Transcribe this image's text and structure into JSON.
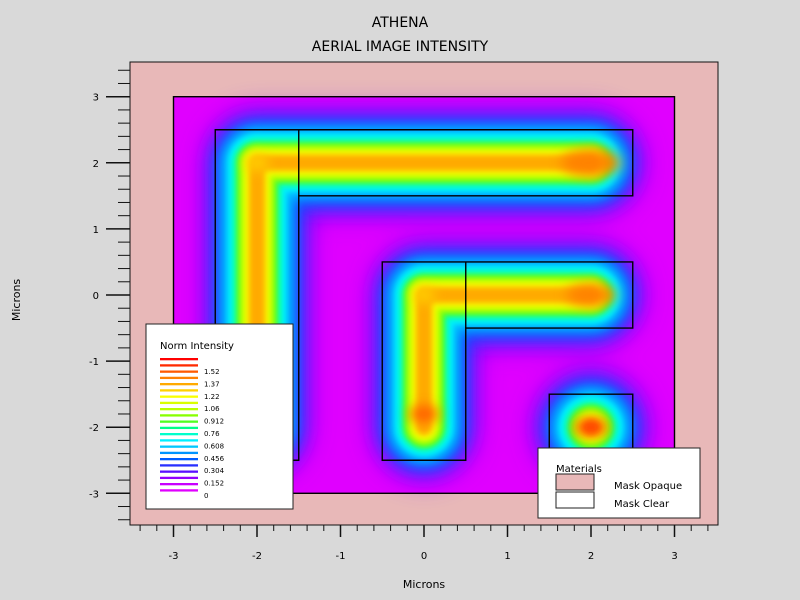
{
  "window": {
    "title": "ATHENA"
  },
  "chart_data": {
    "type": "heatmap",
    "title": "ATHENA",
    "subtitle": "AERIAL IMAGE INTENSITY",
    "xlabel": "Microns",
    "ylabel": "Microns",
    "xlim": [
      -3.5,
      3.5
    ],
    "ylim": [
      -3.5,
      3.5
    ],
    "xticks": [
      -3,
      -2,
      -1,
      0,
      1,
      2,
      3
    ],
    "yticks": [
      -3,
      -2,
      -1,
      0,
      1,
      2,
      3
    ],
    "xtick_labels": [
      "-3",
      "-2",
      "-1",
      "0",
      "1",
      "2",
      "3"
    ],
    "ytick_labels": [
      "-3",
      "-2",
      "-1",
      "0",
      "1",
      "2",
      "3"
    ],
    "colors": {
      "page_background": "#d9d9d9",
      "mask_opaque": "#e8b8b8",
      "zero_intensity": "#e000ff",
      "outline": "#000000"
    },
    "mask_regions": {
      "clear_field": {
        "x": [
          -3,
          3
        ],
        "y": [
          -3,
          3
        ]
      },
      "clear_polygons": [
        {
          "name": "top-l-shape",
          "points": [
            [
              -2.5,
              -2.5
            ],
            [
              -1.5,
              -2.5
            ],
            [
              -1.5,
              1.5
            ],
            [
              2.5,
              1.5
            ],
            [
              2.5,
              2.5
            ],
            [
              -2.5,
              2.5
            ]
          ]
        },
        {
          "name": "middle-l-shape",
          "points": [
            [
              -0.5,
              -2.5
            ],
            [
              0.5,
              -2.5
            ],
            [
              0.5,
              -0.5
            ],
            [
              2.5,
              -0.5
            ],
            [
              2.5,
              0.5
            ],
            [
              -0.5,
              0.5
            ]
          ]
        },
        {
          "name": "small-square",
          "points": [
            [
              1.5,
              -2.5
            ],
            [
              2.5,
              -2.5
            ],
            [
              2.5,
              -1.5
            ],
            [
              1.5,
              -1.5
            ]
          ]
        }
      ],
      "internal_outlines": [
        {
          "points": [
            [
              -1.5,
              2.5
            ],
            [
              -1.5,
              1.5
            ]
          ]
        },
        {
          "points": [
            [
              0.5,
              0.5
            ],
            [
              0.5,
              -0.5
            ]
          ]
        }
      ]
    },
    "intensity_shapes": [
      {
        "name": "top-horizontal-arm",
        "type": "capsule",
        "x1": -2.0,
        "y1": 2.0,
        "x2": 2.0,
        "y2": 2.0,
        "peak": 1.52
      },
      {
        "name": "left-vertical-arm",
        "type": "capsule",
        "x1": -2.0,
        "y1": -2.0,
        "x2": -2.0,
        "y2": 2.0,
        "peak": 1.37
      },
      {
        "name": "middle-horizontal-arm",
        "type": "capsule",
        "x1": 0.0,
        "y1": 0.0,
        "x2": 2.0,
        "y2": 0.0,
        "peak": 1.52
      },
      {
        "name": "middle-vertical-arm",
        "type": "capsule",
        "x1": 0.0,
        "y1": -2.0,
        "x2": 0.0,
        "y2": 0.0,
        "peak": 1.52
      },
      {
        "name": "small-square-spot",
        "type": "spot",
        "x1": 2.0,
        "y1": -2.0,
        "peak": 1.52
      }
    ],
    "colorbar": {
      "title": "Norm Intensity",
      "labels": [
        "1.52",
        "1.37",
        "1.22",
        "1.06",
        "0.912",
        "0.76",
        "0.608",
        "0.456",
        "0.304",
        "0.152",
        "0"
      ],
      "colors": [
        "#ff0000",
        "#ff2a00",
        "#ff5a00",
        "#ff8000",
        "#ffaa00",
        "#ffd000",
        "#f8ff00",
        "#d8ff00",
        "#b8ff00",
        "#88ff00",
        "#50ff20",
        "#00ff88",
        "#00ffcc",
        "#00f0ff",
        "#00c8ff",
        "#0094ff",
        "#005cff",
        "#2830ff",
        "#5a10ff",
        "#9000ff",
        "#c800ff",
        "#e000ff"
      ]
    },
    "materials_legend": {
      "title": "Materials",
      "items": [
        {
          "label": "Mask Opaque",
          "color": "#e8b8b8"
        },
        {
          "label": "Mask Clear",
          "color": "#ffffff"
        }
      ]
    }
  }
}
